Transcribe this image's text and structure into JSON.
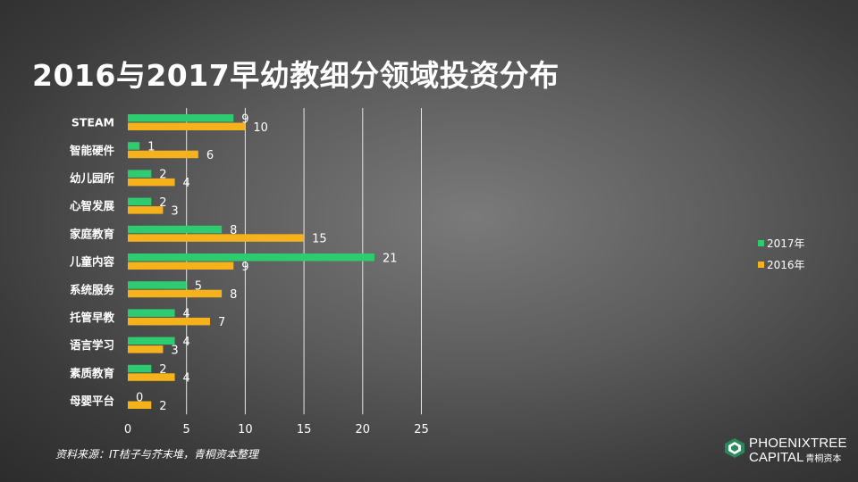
{
  "title": "2016与2017早幼教细分领域投资分布",
  "source_note": "资料来源：IT桔子与芥末堆，青桐资本整理",
  "brand": {
    "line1": "PHOENIXTREE",
    "line2": "CAPITAL",
    "line2_sub": "青桐资本"
  },
  "colors": {
    "series_2017": "#2ecc71",
    "series_2016": "#f5b21b",
    "gridline": "#e6e6e6",
    "text": "#ffffff"
  },
  "chart_data": {
    "type": "bar",
    "orientation": "horizontal",
    "categories": [
      "STEAM",
      "智能硬件",
      "幼儿园所",
      "心智发展",
      "家庭教育",
      "儿童内容",
      "系统服务",
      "托管早教",
      "语言学习",
      "素质教育",
      "母婴平台"
    ],
    "series": [
      {
        "name": "2017年",
        "values": [
          9,
          1,
          2,
          2,
          8,
          21,
          5,
          4,
          4,
          2,
          0
        ]
      },
      {
        "name": "2016年",
        "values": [
          10,
          6,
          4,
          3,
          15,
          9,
          8,
          7,
          3,
          4,
          2
        ]
      }
    ],
    "xlim": [
      0,
      25
    ],
    "xticks": [
      0,
      5,
      10,
      15,
      20,
      25
    ],
    "grid": true,
    "legend_position": "right",
    "data_labels": true
  }
}
